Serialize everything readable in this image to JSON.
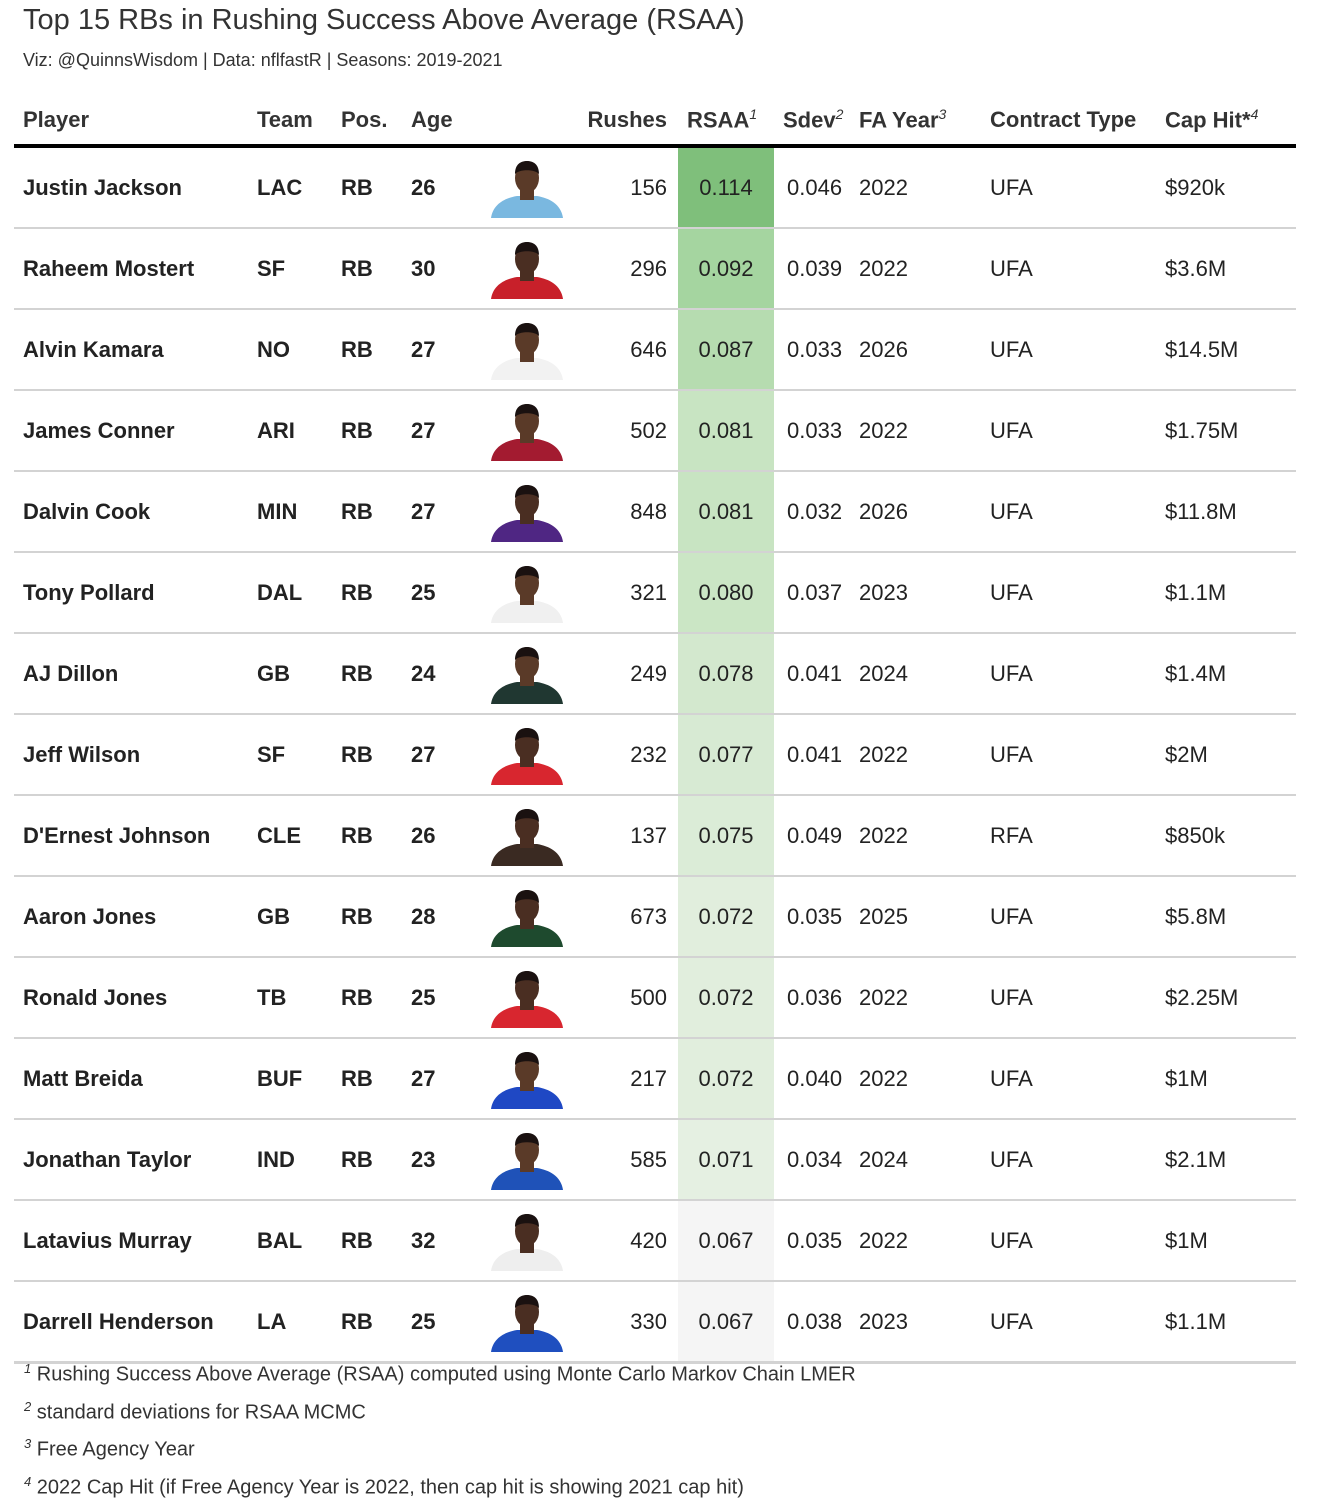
{
  "header": {
    "title": "Top 15 RBs in Rushing Success Above Average (RSAA)",
    "subtitle": "Viz: @QuinnsWisdom | Data: nflfastR | Seasons: 2019-2021"
  },
  "columns": {
    "player": "Player",
    "team": "Team",
    "pos": "Pos.",
    "age": "Age",
    "headshot": "",
    "rushes": "Rushes",
    "rsaa": "RSAA",
    "rsaa_sup": "1",
    "sdev": "Sdev",
    "sdev_sup": "2",
    "fa_year": "FA Year",
    "fa_year_sup": "3",
    "contract": "Contract Type",
    "cap_hit": "Cap Hit*",
    "cap_hit_sup": "4"
  },
  "rows": [
    {
      "player": "Justin Jackson",
      "team": "LAC",
      "pos": "RB",
      "age": "26",
      "rushes": "156",
      "rsaa": "0.114",
      "sdev": "0.046",
      "fa_year": "2022",
      "contract": "UFA",
      "cap_hit": "$920k",
      "rsaa_color": "#7fbf7b",
      "jersey": "#7ab8e0",
      "skin": "#5a3a28",
      "hair": "#1a1110"
    },
    {
      "player": "Raheem Mostert",
      "team": "SF",
      "pos": "RB",
      "age": "30",
      "rushes": "296",
      "rsaa": "0.092",
      "sdev": "0.039",
      "fa_year": "2022",
      "contract": "UFA",
      "cap_hit": "$3.6M",
      "rsaa_color": "#a5d5a0",
      "jersey": "#c8202a",
      "skin": "#4a2e22",
      "hair": "#1a1110"
    },
    {
      "player": "Alvin Kamara",
      "team": "NO",
      "pos": "RB",
      "age": "27",
      "rushes": "646",
      "rsaa": "0.087",
      "sdev": "0.033",
      "fa_year": "2026",
      "contract": "UFA",
      "cap_hit": "$14.5M",
      "rsaa_color": "#b6dcb0",
      "jersey": "#f2f2f2",
      "skin": "#5a3a28",
      "hair": "#1a1110"
    },
    {
      "player": "James Conner",
      "team": "ARI",
      "pos": "RB",
      "age": "27",
      "rushes": "502",
      "rsaa": "0.081",
      "sdev": "0.033",
      "fa_year": "2022",
      "contract": "UFA",
      "cap_hit": "$1.75M",
      "rsaa_color": "#c8e4c2",
      "jersey": "#a31b30",
      "skin": "#5a3a28",
      "hair": "#1a1110"
    },
    {
      "player": "Dalvin Cook",
      "team": "MIN",
      "pos": "RB",
      "age": "27",
      "rushes": "848",
      "rsaa": "0.081",
      "sdev": "0.032",
      "fa_year": "2026",
      "contract": "UFA",
      "cap_hit": "$11.8M",
      "rsaa_color": "#c8e4c2",
      "jersey": "#4f2683",
      "skin": "#4a2e22",
      "hair": "#1a1110"
    },
    {
      "player": "Tony Pollard",
      "team": "DAL",
      "pos": "RB",
      "age": "25",
      "rushes": "321",
      "rsaa": "0.080",
      "sdev": "0.037",
      "fa_year": "2023",
      "contract": "UFA",
      "cap_hit": "$1.1M",
      "rsaa_color": "#cbe6c5",
      "jersey": "#f0f0f0",
      "skin": "#5a3a28",
      "hair": "#1a1110"
    },
    {
      "player": "AJ Dillon",
      "team": "GB",
      "pos": "RB",
      "age": "24",
      "rushes": "249",
      "rsaa": "0.078",
      "sdev": "0.041",
      "fa_year": "2024",
      "contract": "UFA",
      "cap_hit": "$1.4M",
      "rsaa_color": "#d3e8ce",
      "jersey": "#203731",
      "skin": "#5a3a28",
      "hair": "#1a1110"
    },
    {
      "player": "Jeff Wilson",
      "team": "SF",
      "pos": "RB",
      "age": "27",
      "rushes": "232",
      "rsaa": "0.077",
      "sdev": "0.041",
      "fa_year": "2022",
      "contract": "UFA",
      "cap_hit": "$2M",
      "rsaa_color": "#d7ead3",
      "jersey": "#d8262f",
      "skin": "#4a2e22",
      "hair": "#1a1110"
    },
    {
      "player": "D'Ernest Johnson",
      "team": "CLE",
      "pos": "RB",
      "age": "26",
      "rushes": "137",
      "rsaa": "0.075",
      "sdev": "0.049",
      "fa_year": "2022",
      "contract": "RFA",
      "cap_hit": "$850k",
      "rsaa_color": "#dbecd7",
      "jersey": "#3a2a22",
      "skin": "#4a2e22",
      "hair": "#1a1110"
    },
    {
      "player": "Aaron Jones",
      "team": "GB",
      "pos": "RB",
      "age": "28",
      "rushes": "673",
      "rsaa": "0.072",
      "sdev": "0.035",
      "fa_year": "2025",
      "contract": "UFA",
      "cap_hit": "$5.8M",
      "rsaa_color": "#e1eedd",
      "jersey": "#1e4a2e",
      "skin": "#4a2e22",
      "hair": "#1a1110"
    },
    {
      "player": "Ronald Jones",
      "team": "TB",
      "pos": "RB",
      "age": "25",
      "rushes": "500",
      "rsaa": "0.072",
      "sdev": "0.036",
      "fa_year": "2022",
      "contract": "UFA",
      "cap_hit": "$2.25M",
      "rsaa_color": "#e1eedd",
      "jersey": "#d8262f",
      "skin": "#4a2e22",
      "hair": "#1a1110"
    },
    {
      "player": "Matt Breida",
      "team": "BUF",
      "pos": "RB",
      "age": "27",
      "rushes": "217",
      "rsaa": "0.072",
      "sdev": "0.040",
      "fa_year": "2022",
      "contract": "UFA",
      "cap_hit": "$1M",
      "rsaa_color": "#e1eedd",
      "jersey": "#1f48c4",
      "skin": "#5a3a28",
      "hair": "#1a1110"
    },
    {
      "player": "Jonathan Taylor",
      "team": "IND",
      "pos": "RB",
      "age": "23",
      "rushes": "585",
      "rsaa": "0.071",
      "sdev": "0.034",
      "fa_year": "2024",
      "contract": "UFA",
      "cap_hit": "$2.1M",
      "rsaa_color": "#e5f0e2",
      "jersey": "#1f52b8",
      "skin": "#5a3a28",
      "hair": "#1a1110"
    },
    {
      "player": "Latavius Murray",
      "team": "BAL",
      "pos": "RB",
      "age": "32",
      "rushes": "420",
      "rsaa": "0.067",
      "sdev": "0.035",
      "fa_year": "2022",
      "contract": "UFA",
      "cap_hit": "$1M",
      "rsaa_color": "#f5f5f5",
      "jersey": "#eeeeee",
      "skin": "#4a2e22",
      "hair": "#1a1110"
    },
    {
      "player": "Darrell Henderson",
      "team": "LA",
      "pos": "RB",
      "age": "25",
      "rushes": "330",
      "rsaa": "0.067",
      "sdev": "0.038",
      "fa_year": "2023",
      "contract": "UFA",
      "cap_hit": "$1.1M",
      "rsaa_color": "#f5f5f5",
      "jersey": "#1f4fbf",
      "skin": "#4a2e22",
      "hair": "#1a1110"
    }
  ],
  "footnotes": [
    {
      "sup": "1",
      "text": "Rushing Success Above Average (RSAA) computed using Monte Carlo Markov Chain LMER"
    },
    {
      "sup": "2",
      "text": "standard deviations for RSAA MCMC"
    },
    {
      "sup": "3",
      "text": "Free Agency Year"
    },
    {
      "sup": "4",
      "text": "2022 Cap Hit (if Free Agency Year is 2022, then cap hit is showing 2021 cap hit)"
    }
  ]
}
